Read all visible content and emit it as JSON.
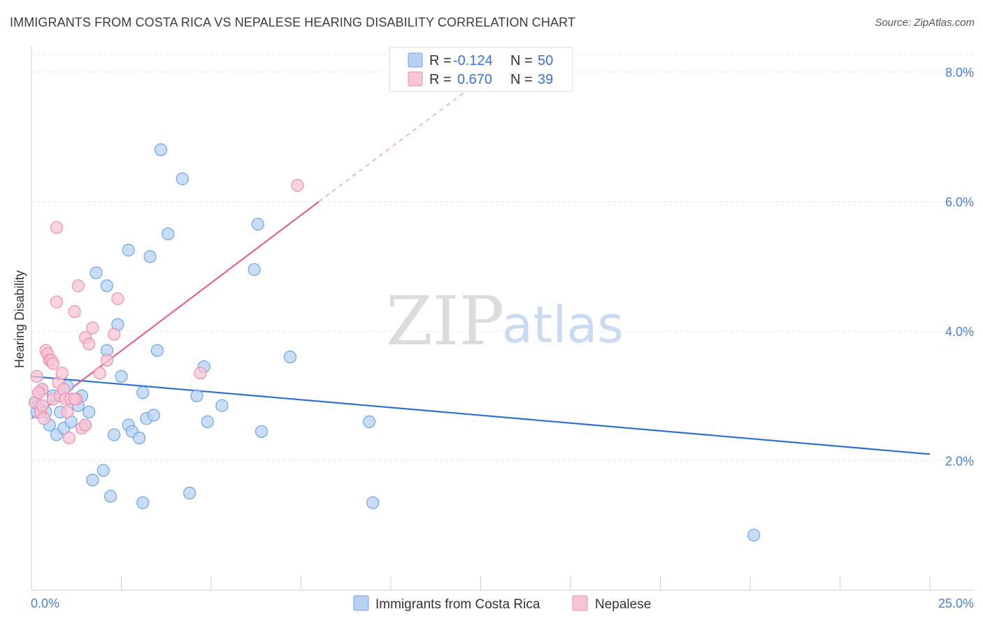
{
  "title": "IMMIGRANTS FROM COSTA RICA VS NEPALESE HEARING DISABILITY CORRELATION CHART",
  "source": "Source: ZipAtlas.com",
  "watermark": {
    "zip": "ZIP",
    "atlas": "atlas"
  },
  "colors": {
    "blue": "#6fa3e6",
    "blue_fill": "#b8d1f3",
    "blue_line": "#2f6fd0",
    "pink": "#ec8fae",
    "pink_fill": "#f7c4d5",
    "pink_line": "#e0648e",
    "axis_text": "#4a7fd4"
  },
  "legend_top": {
    "rows": [
      {
        "r_label": "R =",
        "r_value": "-0.124",
        "n_label": "N =",
        "n_value": "50"
      },
      {
        "r_label": "R =",
        "r_value": "0.670",
        "n_label": "N =",
        "n_value": "39"
      }
    ]
  },
  "legend_bottom": {
    "items": [
      "Immigrants from Costa Rica",
      "Nepalese"
    ]
  },
  "chart_data": {
    "type": "scatter",
    "title": "IMMIGRANTS FROM COSTA RICA VS NEPALESE HEARING DISABILITY CORRELATION CHART",
    "xlabel": "",
    "ylabel": "Hearing Disability",
    "xlim": [
      0,
      25
    ],
    "ylim": [
      0,
      8.4
    ],
    "x_tick_labels": [
      "0.0%",
      "25.0%"
    ],
    "y_ticks": [
      2,
      4,
      6,
      8
    ],
    "y_tick_labels": [
      "2.0%",
      "4.0%",
      "6.0%",
      "8.0%"
    ],
    "grid": true,
    "series": [
      {
        "name": "Immigrants from Costa Rica",
        "r": -0.124,
        "n": 50,
        "trend": {
          "x": [
            0,
            25
          ],
          "y": [
            3.3,
            2.1
          ]
        },
        "points": [
          [
            0.1,
            2.9
          ],
          [
            0.2,
            2.85
          ],
          [
            0.3,
            3.1
          ],
          [
            0.4,
            2.75
          ],
          [
            0.5,
            2.55
          ],
          [
            0.6,
            3.0
          ],
          [
            0.7,
            2.4
          ],
          [
            0.8,
            2.75
          ],
          [
            0.9,
            2.5
          ],
          [
            1.0,
            3.15
          ],
          [
            1.1,
            2.6
          ],
          [
            1.3,
            2.85
          ],
          [
            1.4,
            3.0
          ],
          [
            1.5,
            2.55
          ],
          [
            1.6,
            2.75
          ],
          [
            1.7,
            1.7
          ],
          [
            1.8,
            4.9
          ],
          [
            2.0,
            1.85
          ],
          [
            2.1,
            4.7
          ],
          [
            2.1,
            3.7
          ],
          [
            2.2,
            1.45
          ],
          [
            2.3,
            2.4
          ],
          [
            2.4,
            4.1
          ],
          [
            2.5,
            3.3
          ],
          [
            2.7,
            2.55
          ],
          [
            2.7,
            5.25
          ],
          [
            2.8,
            2.45
          ],
          [
            3.0,
            2.35
          ],
          [
            3.1,
            1.35
          ],
          [
            3.1,
            3.05
          ],
          [
            3.2,
            2.65
          ],
          [
            3.3,
            5.15
          ],
          [
            3.4,
            2.7
          ],
          [
            3.5,
            3.7
          ],
          [
            3.6,
            6.8
          ],
          [
            3.8,
            5.5
          ],
          [
            4.2,
            6.35
          ],
          [
            4.4,
            1.5
          ],
          [
            4.6,
            3.0
          ],
          [
            4.8,
            3.45
          ],
          [
            4.9,
            2.6
          ],
          [
            5.3,
            2.85
          ],
          [
            6.2,
            4.95
          ],
          [
            6.3,
            5.65
          ],
          [
            6.4,
            2.45
          ],
          [
            7.2,
            3.6
          ],
          [
            9.4,
            2.6
          ],
          [
            9.5,
            1.35
          ],
          [
            20.1,
            0.85
          ],
          [
            0.15,
            2.75
          ]
        ]
      },
      {
        "name": "Nepalese",
        "r": 0.67,
        "n": 39,
        "trend": {
          "x": [
            0,
            8.0
          ],
          "y": [
            2.65,
            6.0
          ]
        },
        "trend_dashed": {
          "x": [
            8.0,
            12.8
          ],
          "y": [
            6.0,
            8.0
          ]
        },
        "points": [
          [
            0.1,
            2.9
          ],
          [
            0.15,
            3.3
          ],
          [
            0.2,
            3.05
          ],
          [
            0.25,
            2.75
          ],
          [
            0.3,
            3.1
          ],
          [
            0.35,
            2.65
          ],
          [
            0.4,
            3.7
          ],
          [
            0.45,
            3.65
          ],
          [
            0.5,
            3.55
          ],
          [
            0.55,
            3.55
          ],
          [
            0.6,
            2.95
          ],
          [
            0.7,
            4.45
          ],
          [
            0.7,
            5.6
          ],
          [
            0.75,
            3.2
          ],
          [
            0.8,
            3.0
          ],
          [
            0.85,
            3.35
          ],
          [
            0.9,
            3.1
          ],
          [
            0.95,
            2.95
          ],
          [
            1.0,
            2.75
          ],
          [
            1.05,
            2.35
          ],
          [
            1.1,
            2.95
          ],
          [
            1.2,
            4.3
          ],
          [
            1.25,
            2.95
          ],
          [
            1.3,
            4.7
          ],
          [
            1.4,
            2.5
          ],
          [
            1.5,
            2.55
          ],
          [
            1.5,
            3.9
          ],
          [
            1.6,
            3.8
          ],
          [
            1.7,
            4.05
          ],
          [
            1.9,
            3.35
          ],
          [
            2.1,
            3.55
          ],
          [
            2.3,
            3.95
          ],
          [
            2.4,
            4.5
          ],
          [
            4.7,
            3.35
          ],
          [
            7.4,
            6.25
          ],
          [
            0.2,
            3.05
          ],
          [
            0.6,
            3.5
          ],
          [
            1.2,
            2.95
          ],
          [
            0.3,
            2.85
          ]
        ]
      }
    ]
  }
}
